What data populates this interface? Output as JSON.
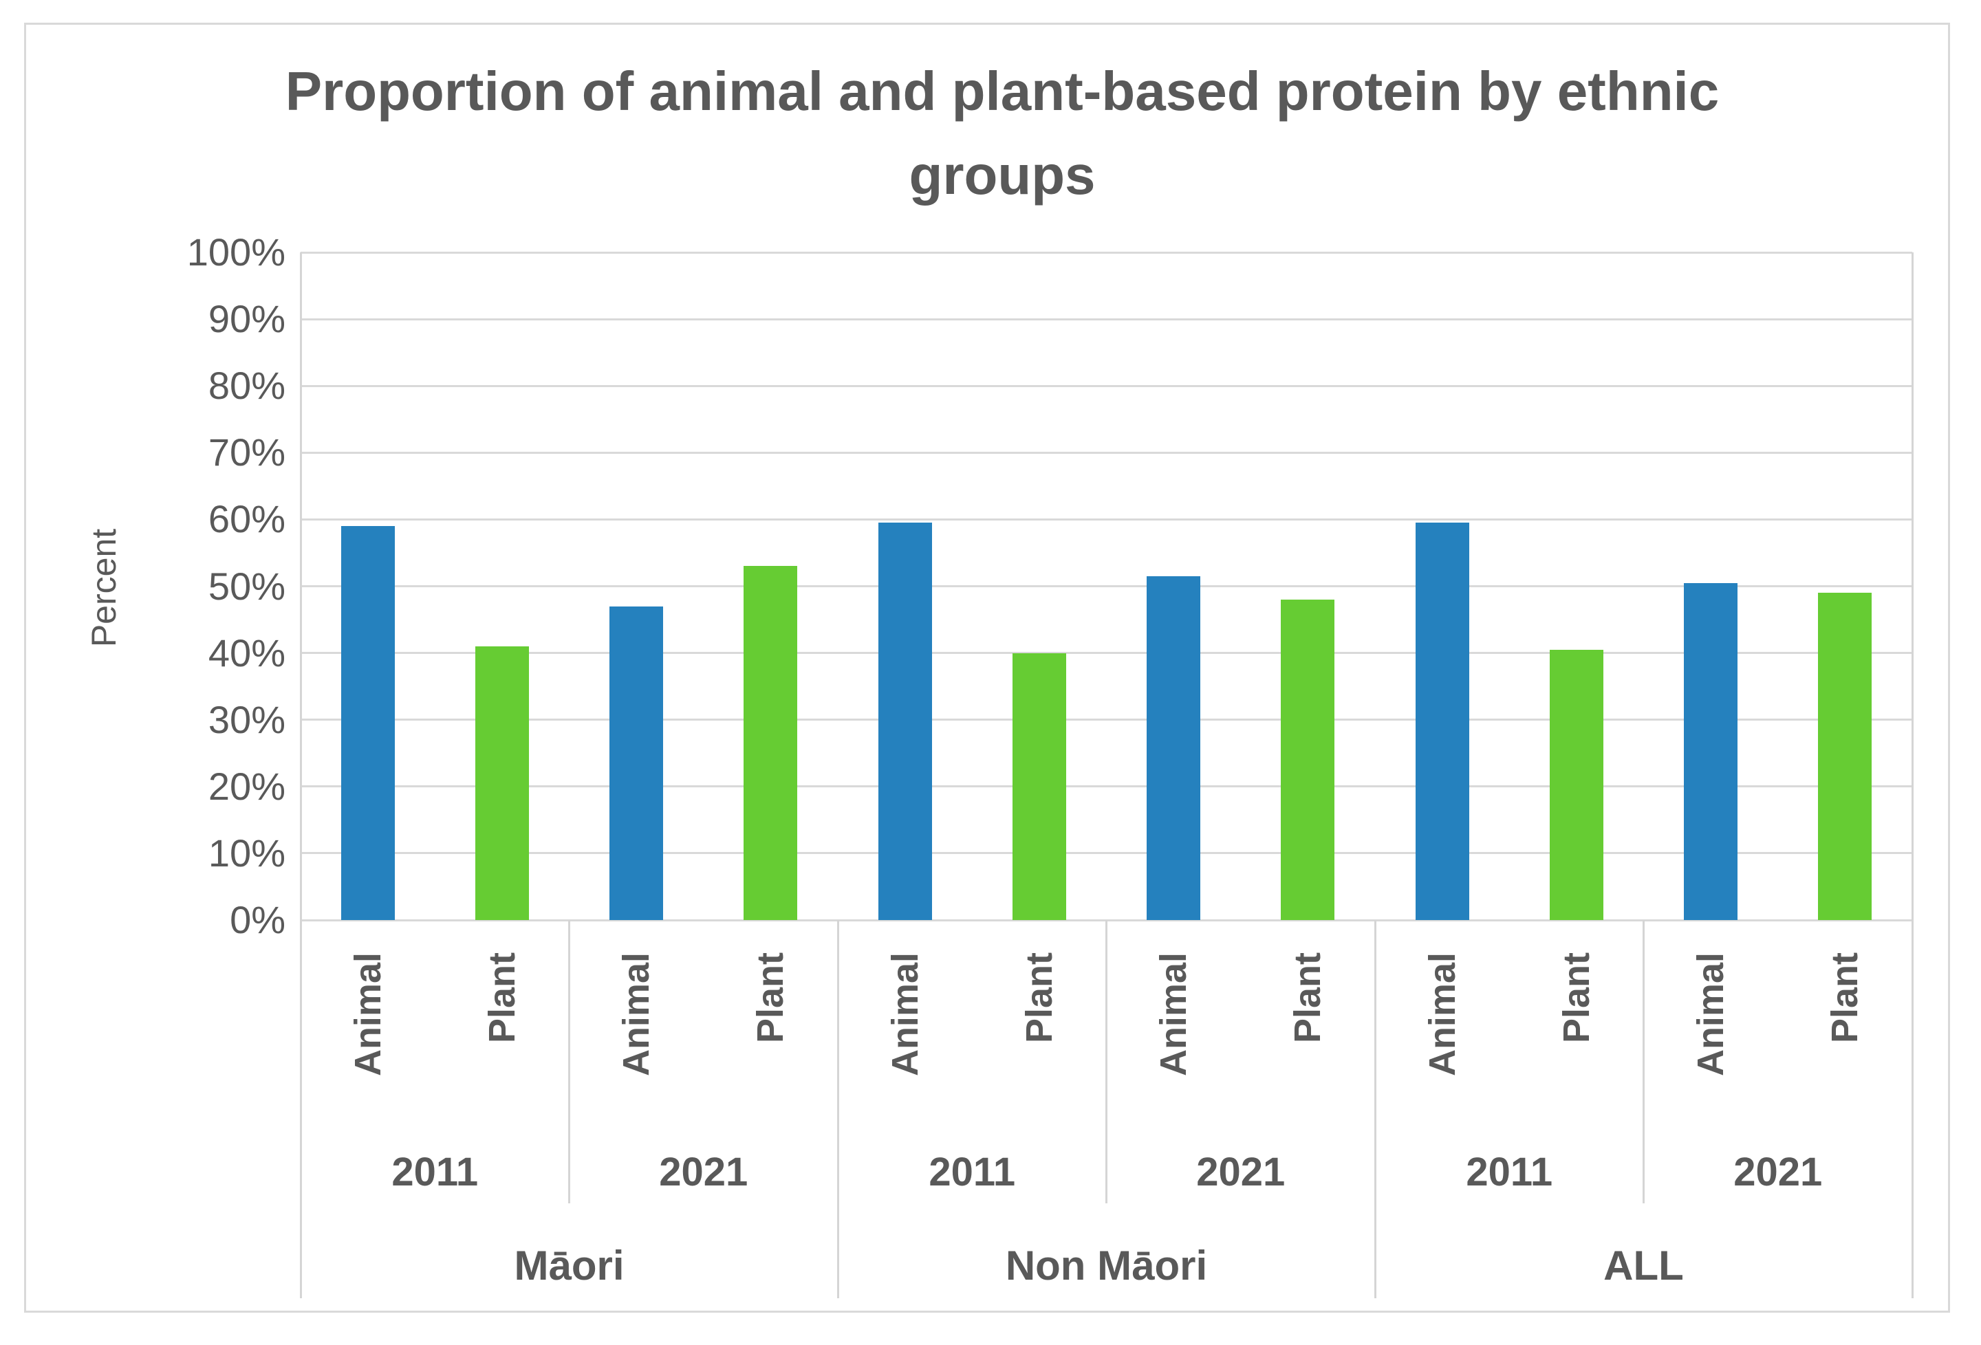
{
  "chart_data": {
    "type": "bar",
    "title": "Proportion of animal and plant-based protein by ethnic groups",
    "ylabel": "Percent",
    "ylim": [
      0,
      100
    ],
    "ytick_step": 10,
    "ytick_labels": [
      "0%",
      "10%",
      "20%",
      "30%",
      "40%",
      "50%",
      "60%",
      "70%",
      "80%",
      "90%",
      "100%"
    ],
    "grid": true,
    "legend": "none",
    "series": [
      {
        "name": "Animal",
        "color": "#2581BE"
      },
      {
        "name": "Plant",
        "color": "#66CC33"
      }
    ],
    "groups": [
      {
        "label": "Māori",
        "years": [
          {
            "label": "2011",
            "values": {
              "Animal": 59,
              "Plant": 41
            }
          },
          {
            "label": "2021",
            "values": {
              "Animal": 47,
              "Plant": 53
            }
          }
        ]
      },
      {
        "label": "Non Māori",
        "years": [
          {
            "label": "2011",
            "values": {
              "Animal": 59.5,
              "Plant": 40
            }
          },
          {
            "label": "2021",
            "values": {
              "Animal": 51.5,
              "Plant": 48
            }
          }
        ]
      },
      {
        "label": "ALL",
        "years": [
          {
            "label": "2011",
            "values": {
              "Animal": 59.5,
              "Plant": 40.5
            }
          },
          {
            "label": "2021",
            "values": {
              "Animal": 50.5,
              "Plant": 49
            }
          }
        ]
      }
    ],
    "colors": {
      "text": "#595959",
      "gridline": "#D9D9D9",
      "frame_border": "#D9D9D9",
      "animal_bar": "#2581BE",
      "plant_bar": "#66CC33"
    }
  }
}
